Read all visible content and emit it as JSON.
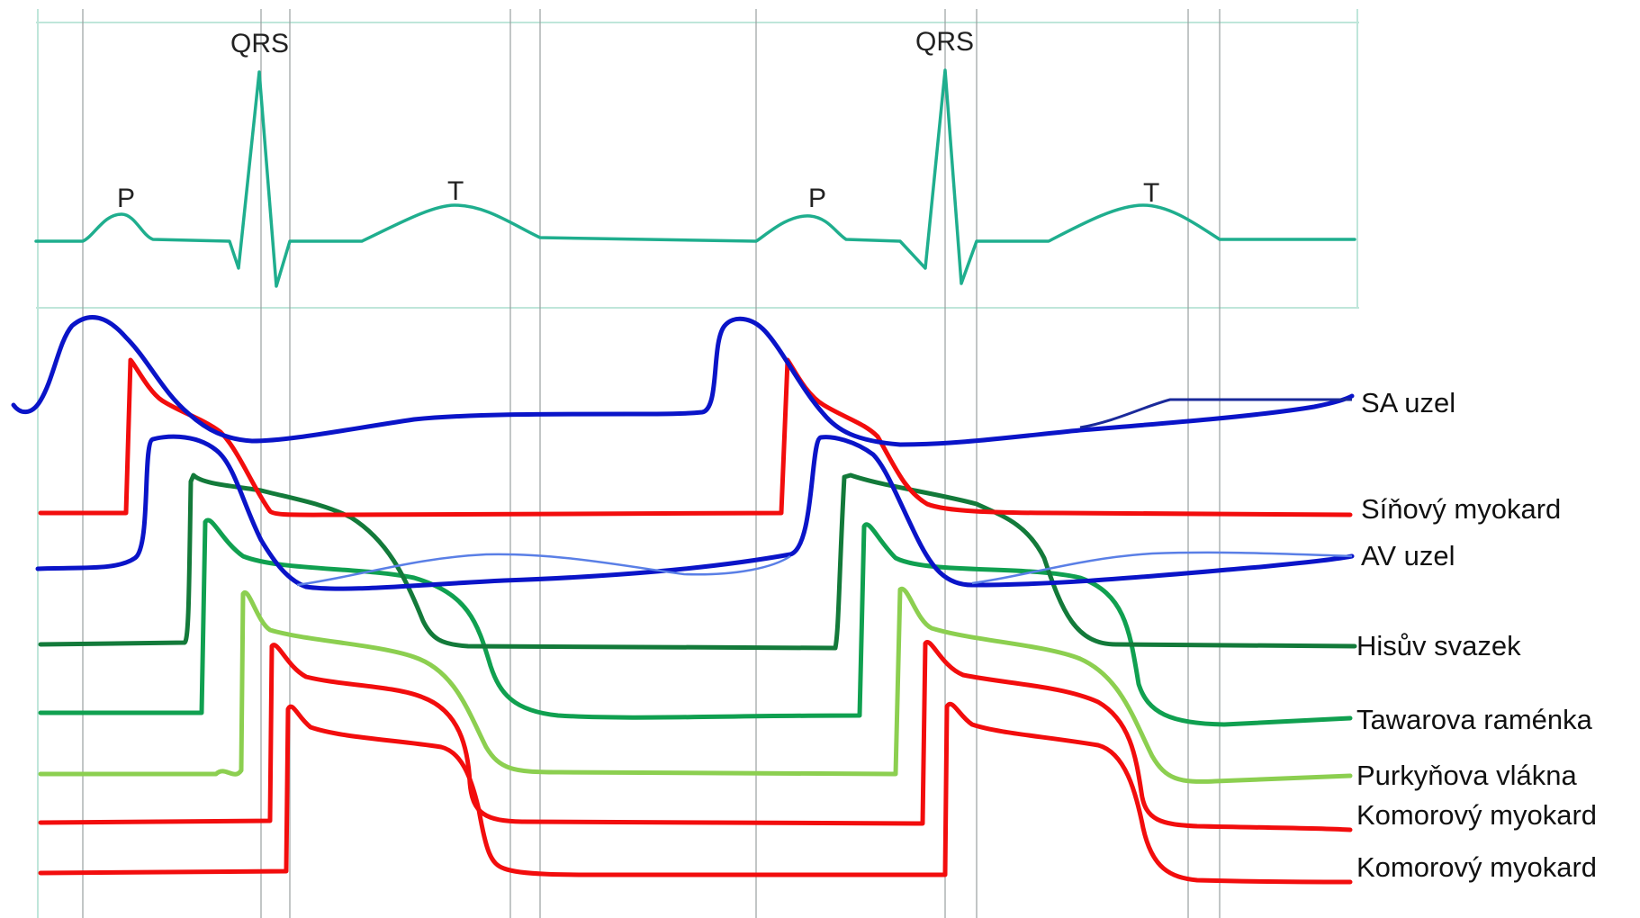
{
  "ecg": {
    "labels": {
      "p1": "P",
      "qrs1": "QRS",
      "t1": "T",
      "p2": "P",
      "qrs2": "QRS",
      "t2": "T"
    }
  },
  "traces": {
    "sa_node": "SA uzel",
    "atrial_myocardium": "Síňový myokard",
    "av_node": "AV uzel",
    "bundle_of_his": "Hisův svazek",
    "tawara_branches": "Tawarova raménka",
    "purkinje_fibers": "Purkyňova vlákna",
    "ventricular_myocardium_1": "Komorový myokard",
    "ventricular_myocardium_2": "Komorový myokard"
  },
  "colors": {
    "ecg": "#1fae8e",
    "sa_node": "#0a14c8",
    "atrial": "#f20d0d",
    "av_node": "#0a14c8",
    "his": "#137a3a",
    "tawara": "#10a050",
    "purkinje": "#8ccf50",
    "ventricular": "#f20d0d"
  }
}
